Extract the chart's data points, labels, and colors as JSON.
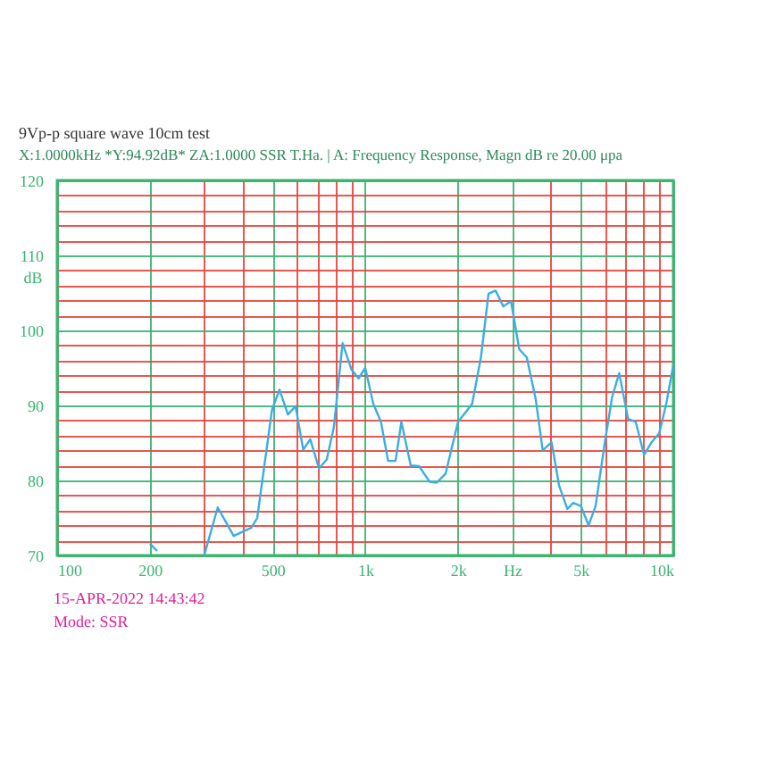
{
  "chart_data": {
    "type": "line",
    "title": "9Vp-p   square   wave   10cm   test",
    "subtitle": "X:1.0000kHz   *Y:94.92dB*   ZA:1.0000   SSR T.Ha.   |   A: Frequency Response, Magn dB re 20.00 μpa",
    "ylabel": "dB",
    "annotations": [
      "15-APR-2022 14:43:42",
      "Mode: SSR"
    ],
    "log": "x",
    "grid": true,
    "legend": false,
    "marker": "none",
    "line_style": "solid",
    "xlim": [
      100,
      10000
    ],
    "ylim": [
      70,
      120
    ],
    "xticks": [
      100,
      200,
      {
        "value": 300,
        "label": null
      },
      {
        "value": 400,
        "label": null
      },
      500,
      {
        "value": 600,
        "label": null
      },
      {
        "value": 700,
        "label": null
      },
      {
        "value": 800,
        "label": null
      },
      {
        "value": 900,
        "label": null
      },
      {
        "value": 1000,
        "label": "1k"
      },
      {
        "value": 2000,
        "label": "2k"
      },
      {
        "value": 3000,
        "label": "Hz"
      },
      {
        "value": 4000,
        "label": null
      },
      {
        "value": 5000,
        "label": "5k"
      },
      {
        "value": 6000,
        "label": null
      },
      {
        "value": 7000,
        "label": null
      },
      {
        "value": 8000,
        "label": null
      },
      {
        "value": 9000,
        "label": null
      },
      {
        "value": 10000,
        "label": "10k"
      }
    ],
    "yticks": [
      70,
      {
        "value": 72,
        "label": null
      },
      {
        "value": 74,
        "label": null
      },
      {
        "value": 76,
        "label": null
      },
      {
        "value": 78,
        "label": null
      },
      80,
      {
        "value": 82,
        "label": null
      },
      {
        "value": 84,
        "label": null
      },
      {
        "value": 86,
        "label": null
      },
      {
        "value": 88,
        "label": null
      },
      90,
      {
        "value": 92,
        "label": null
      },
      {
        "value": 94,
        "label": null
      },
      {
        "value": 96,
        "label": null
      },
      {
        "value": 98,
        "label": null
      },
      100,
      {
        "value": 102,
        "label": null
      },
      {
        "value": 104,
        "label": null
      },
      {
        "value": 106,
        "label": null
      },
      {
        "value": 108,
        "label": null
      },
      110,
      {
        "value": 112,
        "label": null
      },
      {
        "value": 114,
        "label": null
      },
      {
        "value": 116,
        "label": null
      },
      {
        "value": 118,
        "label": null
      },
      120
    ],
    "series": [
      {
        "color": "#3aaee0",
        "x": [
          300,
          332,
          374,
          427,
          446,
          498,
          527,
          561,
          594,
          629,
          663,
          708,
          750,
          791,
          844,
          902,
          951,
          1000,
          1062,
          1125,
          1186,
          1254,
          1310,
          1405,
          1495,
          1619,
          1706,
          1823,
          2000,
          2223,
          2374,
          2513,
          2650,
          2806,
          2972,
          3161,
          3344,
          3573,
          3767,
          4025,
          4259,
          4529,
          4733,
          5011,
          5307,
          5593,
          5974,
          6327,
          6672,
          7131,
          7551,
          8035,
          8501,
          9000,
          9483,
          10000
        ],
        "values": [
          70.0,
          76.4,
          72.6,
          73.7,
          75.0,
          89.4,
          92.1,
          88.8,
          89.9,
          84.1,
          85.5,
          81.6,
          82.8,
          87.1,
          98.3,
          94.8,
          93.6,
          95.0,
          90.2,
          87.8,
          82.6,
          82.6,
          87.8,
          82.0,
          81.9,
          79.8,
          79.7,
          80.9,
          87.8,
          90.2,
          96.4,
          104.9,
          105.3,
          103.2,
          103.9,
          97.5,
          96.4,
          90.9,
          84.0,
          85.1,
          79.3,
          76.2,
          77.0,
          76.6,
          74.0,
          76.6,
          84.7,
          91.1,
          94.3,
          88.2,
          87.8,
          83.4,
          85.1,
          86.3,
          90.2,
          95.4
        ]
      },
      {
        "color": "#3aaee0",
        "x": [
          200,
          211
        ],
        "values": [
          71.6,
          70.6
        ]
      }
    ]
  }
}
